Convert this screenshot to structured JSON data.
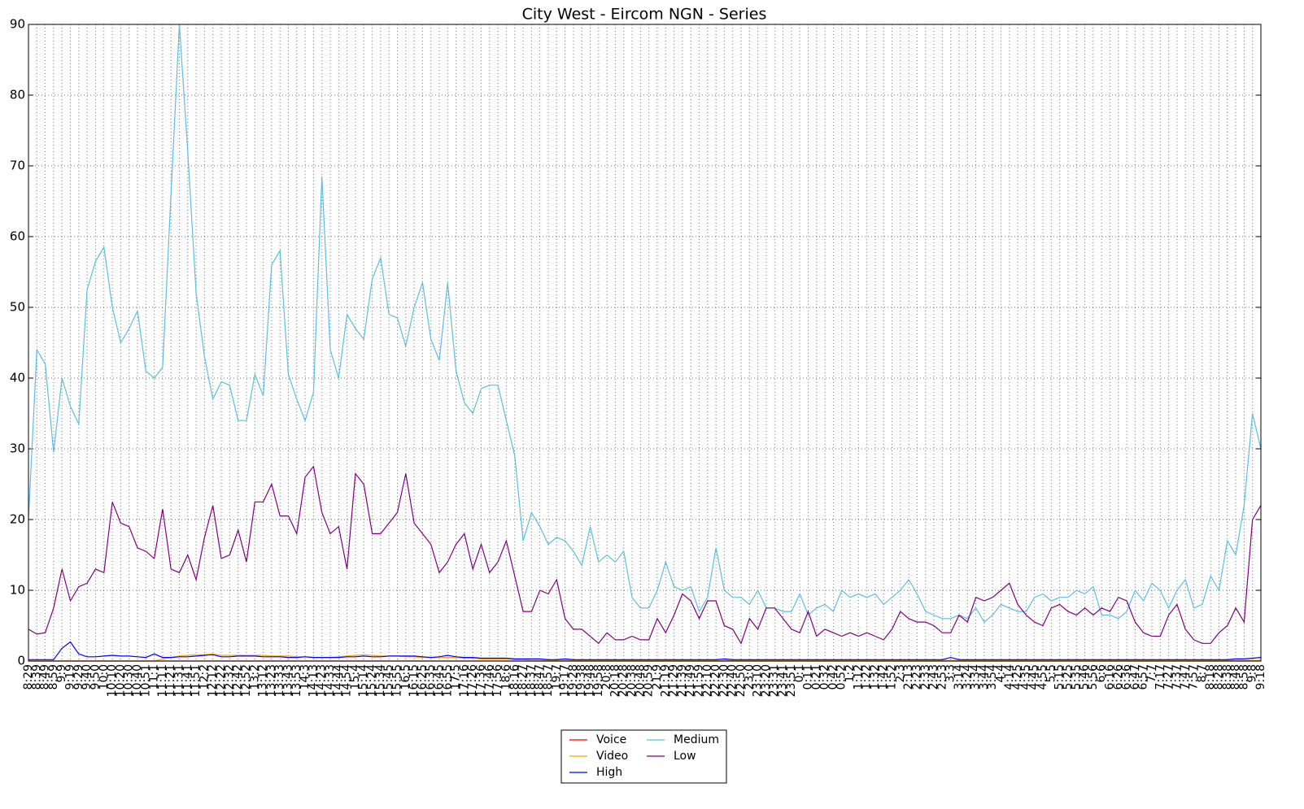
{
  "chart_data": {
    "type": "line",
    "title": "City West - Eircom NGN - Series",
    "categories": [
      "8:29",
      "8:39",
      "8:49",
      "8:59",
      "9:9",
      "9:19",
      "9:29",
      "9:40",
      "9:50",
      "10:0",
      "10:10",
      "10:20",
      "10:30",
      "10:40",
      "10:51",
      "11:1",
      "11:11",
      "11:21",
      "11:31",
      "11:41",
      "11:51",
      "12:2",
      "12:12",
      "12:22",
      "12:32",
      "12:42",
      "12:52",
      "13:2",
      "13:12",
      "13:23",
      "13:33",
      "13:43",
      "13:53",
      "14:3",
      "14:13",
      "14:23",
      "14:33",
      "14:44",
      "14:54",
      "15:4",
      "15:14",
      "15:24",
      "15:34",
      "15:45",
      "15:55",
      "16:5",
      "16:15",
      "16:25",
      "16:35",
      "16:45",
      "16:55",
      "17:5",
      "17:16",
      "17:26",
      "17:36",
      "17:46",
      "17:56",
      "18:6",
      "18:16",
      "18:27",
      "18:37",
      "18:47",
      "18:57",
      "19:7",
      "19:17",
      "19:28",
      "19:38",
      "19:48",
      "19:58",
      "20:8",
      "20:18",
      "20:28",
      "20:38",
      "20:48",
      "20:59",
      "21:9",
      "21:19",
      "21:29",
      "21:39",
      "21:49",
      "21:59",
      "22:10",
      "22:20",
      "22:30",
      "22:40",
      "22:50",
      "23:0",
      "23:10",
      "23:20",
      "23:31",
      "23:41",
      "23:51",
      "0:1",
      "0:11",
      "0:21",
      "0:32",
      "0:42",
      "0:52",
      "1:2",
      "1:12",
      "1:22",
      "1:32",
      "1:42",
      "1:52",
      "2:3",
      "2:13",
      "2:23",
      "2:33",
      "2:43",
      "2:53",
      "3:3",
      "3:14",
      "3:24",
      "3:34",
      "3:44",
      "3:54",
      "4:4",
      "4:14",
      "4:25",
      "4:35",
      "4:45",
      "4:55",
      "5:5",
      "5:15",
      "5:25",
      "5:35",
      "5:46",
      "5:56",
      "6:6",
      "6:16",
      "6:26",
      "6:36",
      "6:47",
      "6:57",
      "7:7",
      "7:17",
      "7:27",
      "7:37",
      "7:47",
      "7:57",
      "8:7",
      "8:18",
      "8:28",
      "8:38",
      "8:48",
      "8:58",
      "9:8",
      "9:18"
    ],
    "series": [
      {
        "name": "Voice",
        "color": "#ff0000",
        "values": [
          0,
          0,
          0,
          0,
          0,
          0,
          0,
          0,
          0,
          0,
          0,
          0,
          0,
          0,
          0,
          0,
          0,
          0,
          0,
          0,
          0,
          0,
          0,
          0,
          0,
          0,
          0,
          0,
          0,
          0,
          0,
          0,
          0,
          0,
          0,
          0,
          0,
          0,
          0,
          0,
          0,
          0,
          0,
          0,
          0,
          0,
          0,
          0,
          0,
          0,
          0,
          0,
          0,
          0,
          0,
          0,
          0,
          0,
          0,
          0,
          0,
          0,
          0,
          0,
          0,
          0,
          0,
          0,
          0,
          0,
          0,
          0,
          0,
          0,
          0,
          0,
          0,
          0,
          0,
          0,
          0,
          0,
          0,
          0,
          0,
          0,
          0,
          0,
          0,
          0,
          0,
          0,
          0,
          0,
          0,
          0,
          0,
          0,
          0,
          0,
          0,
          0,
          0,
          0,
          0,
          0,
          0,
          0,
          0,
          0,
          0,
          0,
          0,
          0,
          0,
          0,
          0,
          0,
          0,
          0,
          0,
          0,
          0,
          0,
          0,
          0,
          0,
          0,
          0,
          0,
          0,
          0,
          0,
          0,
          0,
          0,
          0,
          0,
          0,
          0,
          0,
          0,
          0,
          0,
          0,
          0,
          0,
          0
        ]
      },
      {
        "name": "Video",
        "color": "#ffa500",
        "values": [
          0,
          0,
          0,
          0,
          0,
          0,
          0,
          0,
          0,
          0,
          0,
          0,
          0,
          0,
          0,
          0,
          0.3,
          0.5,
          0.7,
          0.8,
          0.9,
          0.9,
          1.0,
          0.8,
          0.8,
          0.8,
          0.8,
          0.8,
          0.8,
          0.7,
          0.7,
          0.7,
          0.6,
          0.6,
          0.5,
          0.5,
          0.5,
          0.6,
          0.7,
          0.8,
          0.9,
          0.8,
          0.7,
          0.7,
          0.7,
          0.6,
          0.6,
          0.5,
          0.5,
          0.5,
          0.5,
          0.5,
          0.4,
          0.4,
          0.3,
          0.3,
          0.3,
          0.3,
          0.2,
          0.2,
          0.1,
          0.1,
          0.1,
          0.1,
          0.1,
          0.1,
          0.1,
          0.1,
          0.1,
          0.1,
          0.1,
          0.1,
          0.1,
          0.1,
          0.1,
          0.1,
          0.1,
          0.1,
          0.1,
          0.1,
          0.1,
          0.1,
          0.1,
          0.1,
          0.1,
          0.1,
          0.1,
          0.1,
          0.1,
          0.1,
          0.1,
          0.1,
          0.1,
          0.1,
          0.1,
          0.1,
          0.1,
          0.1,
          0.1,
          0.1,
          0.1,
          0.1,
          0.1,
          0.1,
          0.1,
          0.1,
          0.1,
          0.1,
          0.1,
          0.1,
          0.1,
          0.1,
          0.1,
          0.1,
          0.1,
          0.1,
          0.1,
          0.1,
          0.1,
          0.1,
          0.1,
          0.1,
          0.1,
          0.1,
          0.1,
          0.1,
          0.1,
          0.1,
          0.1,
          0.1,
          0.1,
          0.1,
          0.1,
          0.1,
          0.1,
          0.1,
          0.1,
          0.1,
          0.1,
          0.1,
          0.1,
          0.1,
          0.1,
          0.1,
          0.1,
          0.1,
          0.1,
          0.1
        ]
      },
      {
        "name": "High",
        "color": "#0000ff",
        "values": [
          0.2,
          0.2,
          0.2,
          0.2,
          1.8,
          2.7,
          1.0,
          0.6,
          0.6,
          0.7,
          0.8,
          0.7,
          0.7,
          0.6,
          0.5,
          1.0,
          0.5,
          0.5,
          0.6,
          0.6,
          0.7,
          0.8,
          0.9,
          0.6,
          0.6,
          0.7,
          0.7,
          0.7,
          0.6,
          0.6,
          0.6,
          0.5,
          0.5,
          0.6,
          0.5,
          0.5,
          0.5,
          0.5,
          0.6,
          0.6,
          0.7,
          0.6,
          0.6,
          0.7,
          0.7,
          0.7,
          0.7,
          0.6,
          0.5,
          0.6,
          0.8,
          0.6,
          0.5,
          0.5,
          0.4,
          0.4,
          0.4,
          0.4,
          0.3,
          0.3,
          0.3,
          0.3,
          0.2,
          0.2,
          0.3,
          0.2,
          0.2,
          0.2,
          0.2,
          0.2,
          0.2,
          0.2,
          0.2,
          0.2,
          0.2,
          0.2,
          0.2,
          0.2,
          0.2,
          0.2,
          0.2,
          0.2,
          0.2,
          0.3,
          0.2,
          0.2,
          0.2,
          0.2,
          0.2,
          0.2,
          0.2,
          0.2,
          0.2,
          0.2,
          0.2,
          0.2,
          0.2,
          0.2,
          0.2,
          0.2,
          0.2,
          0.2,
          0.2,
          0.2,
          0.2,
          0.2,
          0.2,
          0.2,
          0.2,
          0.2,
          0.5,
          0.2,
          0.2,
          0.2,
          0.2,
          0.2,
          0.2,
          0.2,
          0.2,
          0.2,
          0.2,
          0.2,
          0.2,
          0.2,
          0.2,
          0.2,
          0.2,
          0.2,
          0.2,
          0.2,
          0.2,
          0.2,
          0.2,
          0.2,
          0.2,
          0.2,
          0.2,
          0.2,
          0.2,
          0.2,
          0.2,
          0.2,
          0.2,
          0.2,
          0.3,
          0.3,
          0.4,
          0.5
        ]
      },
      {
        "name": "Medium",
        "color": "#5bbfdf",
        "values": [
          20,
          44,
          42,
          29.5,
          40,
          36,
          33.5,
          52.5,
          56.5,
          58.5,
          50,
          45,
          47,
          49.5,
          41,
          40,
          41.5,
          66,
          90,
          72,
          52,
          43,
          37,
          39.5,
          39,
          34,
          34,
          40.5,
          37.5,
          56,
          58,
          40.5,
          37,
          34,
          38,
          68.5,
          44,
          40,
          49,
          47,
          45.5,
          54,
          57,
          49,
          48.5,
          44.5,
          50,
          53.5,
          45.5,
          42.5,
          53.5,
          41,
          36.5,
          35,
          38.5,
          39,
          39,
          34,
          29,
          17,
          21,
          19,
          16.5,
          17.5,
          17,
          15.5,
          13.5,
          19,
          14,
          15,
          14,
          15.5,
          9,
          7.5,
          7.5,
          10,
          14,
          10.5,
          10,
          10.5,
          7,
          9,
          16,
          10,
          9,
          9,
          8,
          10,
          7.5,
          7.5,
          7,
          7,
          9.5,
          6.5,
          7.5,
          8,
          7,
          10,
          9,
          9.5,
          9,
          9.5,
          8,
          9,
          10,
          11.5,
          9.5,
          7,
          6.5,
          6,
          6,
          6.5,
          6,
          7.5,
          5.5,
          6.5,
          8,
          7.5,
          7,
          7,
          9,
          9.5,
          8.5,
          9,
          9,
          10,
          9.5,
          10.5,
          6.5,
          6.5,
          6,
          7,
          10,
          8.5,
          11,
          10,
          7.5,
          10,
          11.5,
          7.5,
          8,
          12,
          10,
          17,
          15,
          22,
          35,
          30
        ]
      },
      {
        "name": "Low",
        "color": "#800080",
        "values": [
          4.5,
          3.8,
          4,
          7.5,
          13,
          8.5,
          10.5,
          11,
          13,
          12.5,
          22.5,
          19.5,
          19,
          16,
          15.5,
          14.5,
          21.5,
          13,
          12.5,
          15,
          11.5,
          17.5,
          22,
          14.5,
          15,
          18.5,
          14,
          22.5,
          22.5,
          25,
          20.5,
          20.5,
          18,
          26,
          27.5,
          21,
          18,
          19,
          13,
          26.5,
          25,
          18,
          18,
          19.5,
          21,
          26.5,
          19.5,
          18,
          16.5,
          12.5,
          14,
          16.5,
          18,
          13,
          16.5,
          12.5,
          14,
          17,
          12,
          7,
          7,
          10,
          9.5,
          11.5,
          6,
          4.5,
          4.5,
          3.5,
          2.5,
          4,
          3,
          3,
          3.5,
          3,
          3,
          6,
          4,
          6.5,
          9.5,
          8.5,
          6,
          8.5,
          8.5,
          5,
          4.5,
          2.5,
          6,
          4.5,
          7.5,
          7.5,
          6,
          4.5,
          4,
          7,
          3.5,
          4.5,
          4,
          3.5,
          4,
          3.5,
          4,
          3.5,
          3,
          4.5,
          7,
          6,
          5.5,
          5.5,
          5,
          4,
          4,
          6.5,
          5.5,
          9,
          8.5,
          9,
          10,
          11,
          8,
          6.5,
          5.5,
          5,
          7.5,
          8,
          7,
          6.5,
          7.5,
          6.5,
          7.5,
          7,
          9,
          8.5,
          5.5,
          4,
          3.5,
          3.5,
          6.5,
          8,
          4.5,
          3,
          2.5,
          2.5,
          4,
          5,
          7.5,
          5.5,
          20,
          22
        ]
      }
    ],
    "ylim": [
      0,
      90
    ],
    "yticks": [
      0,
      10,
      20,
      30,
      40,
      50,
      60,
      70,
      80,
      90
    ],
    "grid": true,
    "legend": "bottom"
  }
}
